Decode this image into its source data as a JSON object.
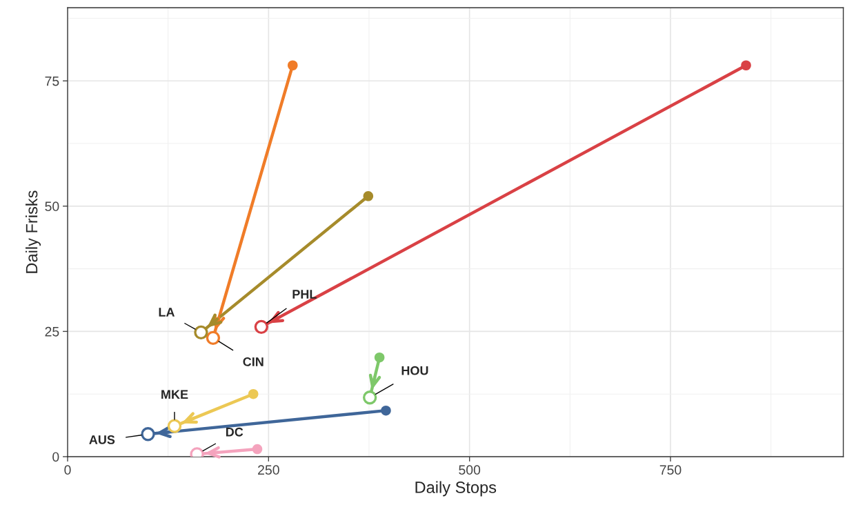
{
  "chart_data": {
    "type": "line",
    "xlabel": "Daily Stops",
    "ylabel": "Daily Frisks",
    "xlim": [
      0,
      965
    ],
    "ylim": [
      0,
      89.6
    ],
    "xticks": [
      0,
      250,
      500,
      750
    ],
    "yticks": [
      0,
      25,
      50,
      75
    ],
    "grid": true,
    "marker": "circle",
    "line_style": "solid",
    "series": [
      {
        "name": "PHL",
        "color": "#d94145",
        "x": [
          844,
          241
        ],
        "values": [
          78.1,
          25.9
        ]
      },
      {
        "name": "CIN",
        "color": "#f07c28",
        "x": [
          280,
          181
        ],
        "values": [
          78.1,
          23.7
        ]
      },
      {
        "name": "LA",
        "color": "#a68b2b",
        "x": [
          374,
          166
        ],
        "values": [
          52.0,
          24.8
        ]
      },
      {
        "name": "HOU",
        "color": "#7ec86a",
        "x": [
          388,
          376
        ],
        "values": [
          19.8,
          11.8
        ]
      },
      {
        "name": "MKE",
        "color": "#ecc854",
        "x": [
          231,
          133
        ],
        "values": [
          12.5,
          6.1
        ]
      },
      {
        "name": "AUS",
        "color": "#3f6699",
        "x": [
          396,
          100
        ],
        "values": [
          9.2,
          4.5
        ]
      },
      {
        "name": "DC",
        "color": "#f4a3bd",
        "x": [
          236,
          161
        ],
        "values": [
          1.5,
          0.5
        ]
      }
    ]
  }
}
